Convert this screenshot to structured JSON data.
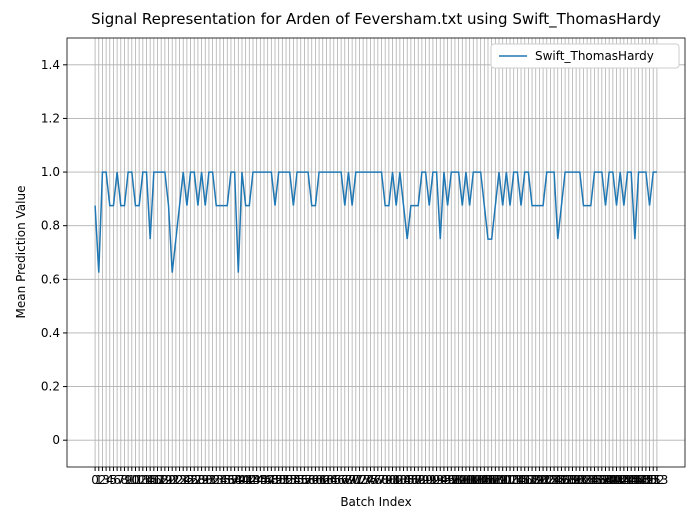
{
  "chart_data": {
    "type": "line",
    "title": "Signal Representation for Arden of Feversham.txt using Swift_ThomasHardy",
    "x_label": "Batch Index",
    "y_label": "Mean Prediction Value",
    "x": [
      0,
      1,
      2,
      3,
      4,
      5,
      6,
      7,
      8,
      9,
      10,
      11,
      12,
      13,
      14,
      15,
      16,
      17,
      18,
      19,
      20,
      21,
      22,
      23,
      24,
      25,
      26,
      27,
      28,
      29,
      30,
      31,
      32,
      33,
      34,
      35,
      36,
      37,
      38,
      39,
      40,
      41,
      42,
      43,
      44,
      45,
      46,
      47,
      48,
      49,
      50,
      51,
      52,
      53,
      54,
      55,
      56,
      57,
      58,
      59,
      60,
      61,
      62,
      63,
      64,
      65,
      66,
      67,
      68,
      69,
      70,
      71,
      72,
      73,
      74,
      75,
      76,
      77,
      78,
      79,
      80,
      81,
      82,
      83,
      84,
      85,
      86,
      87,
      88,
      89,
      90,
      91,
      92,
      93,
      94,
      95,
      96,
      97,
      98,
      99,
      100,
      101,
      102,
      103,
      104,
      105,
      106,
      107,
      108,
      109,
      110,
      111,
      112,
      113,
      114,
      115,
      116,
      117,
      118,
      119,
      120,
      121,
      122,
      123,
      124,
      125,
      126,
      127,
      128,
      129,
      130,
      131,
      132,
      133,
      134,
      135,
      136,
      137,
      138,
      139,
      140,
      141,
      142,
      143,
      144,
      145,
      146,
      147,
      148,
      149,
      150,
      151,
      152,
      153
    ],
    "series": [
      {
        "name": "Swift_ThomasHardy",
        "color": "#1f77b4",
        "values": [
          0.875,
          0.625,
          1,
          1,
          0.875,
          0.875,
          1,
          0.875,
          0.875,
          1,
          1,
          0.875,
          0.875,
          1,
          1,
          0.75,
          1,
          1,
          1,
          1,
          0.875,
          0.625,
          0.75,
          0.875,
          1,
          0.875,
          1,
          1,
          0.875,
          1,
          0.875,
          1,
          1,
          0.875,
          0.875,
          0.875,
          0.875,
          1,
          1,
          0.625,
          1,
          0.875,
          0.875,
          1,
          1,
          1,
          1,
          1,
          1,
          0.875,
          1,
          1,
          1,
          1,
          0.875,
          1,
          1,
          1,
          1,
          0.875,
          0.875,
          1,
          1,
          1,
          1,
          1,
          1,
          1,
          0.875,
          1,
          0.875,
          1,
          1,
          1,
          1,
          1,
          1,
          1,
          1,
          0.875,
          0.875,
          1,
          0.875,
          1,
          0.875,
          0.75,
          0.875,
          0.875,
          0.875,
          1,
          1,
          0.875,
          1,
          1,
          0.75,
          1,
          0.875,
          1,
          1,
          1,
          0.875,
          1,
          0.875,
          1,
          1,
          1,
          0.875,
          0.75,
          0.75,
          0.875,
          1,
          0.875,
          1,
          0.875,
          1,
          1,
          0.875,
          1,
          1,
          0.875,
          0.875,
          0.875,
          0.875,
          1,
          1,
          1,
          0.75,
          0.875,
          1,
          1,
          1,
          1,
          1,
          0.875,
          0.875,
          0.875,
          1,
          1,
          1,
          0.875,
          1,
          1,
          0.875,
          1,
          0.875,
          1,
          1,
          0.75,
          1,
          1,
          1,
          0.875,
          1,
          1
        ]
      }
    ],
    "xlim": [
      -7.65,
      160.65
    ],
    "ylim": [
      -0.1,
      1.5
    ],
    "xticks": [
      0,
      1,
      2,
      3,
      4,
      5,
      6,
      7,
      8,
      9,
      10,
      11,
      12,
      13,
      14,
      15,
      16,
      17,
      18,
      19,
      20,
      21,
      22,
      23,
      24,
      25,
      26,
      27,
      28,
      29,
      30,
      31,
      32,
      33,
      34,
      35,
      36,
      37,
      38,
      39,
      40,
      41,
      42,
      43,
      44,
      45,
      46,
      47,
      48,
      49,
      50,
      51,
      52,
      53,
      54,
      55,
      56,
      57,
      58,
      59,
      60,
      61,
      62,
      63,
      64,
      65,
      66,
      67,
      68,
      69,
      70,
      71,
      72,
      73,
      74,
      75,
      76,
      77,
      78,
      79,
      80,
      81,
      82,
      83,
      84,
      85,
      86,
      87,
      88,
      89,
      90,
      91,
      92,
      93,
      94,
      95,
      96,
      97,
      98,
      99,
      100,
      101,
      102,
      103,
      104,
      105,
      106,
      107,
      108,
      109,
      110,
      111,
      112,
      113,
      114,
      115,
      116,
      117,
      118,
      119,
      120,
      121,
      122,
      123,
      124,
      125,
      126,
      127,
      128,
      129,
      130,
      131,
      132,
      133,
      134,
      135,
      136,
      137,
      138,
      139,
      140,
      141,
      142,
      143,
      144,
      145,
      146,
      147,
      148,
      149,
      150,
      151,
      152,
      153
    ],
    "yticks": [
      0,
      {
        "value": 0.2,
        "label": "0.2"
      },
      {
        "value": 0.4,
        "label": "0.4"
      },
      {
        "value": 0.6,
        "label": "0.6"
      },
      {
        "value": 0.8,
        "label": "0.8"
      },
      {
        "value": 1,
        "label": "1.0"
      },
      {
        "value": 1.2,
        "label": "1.2"
      },
      {
        "value": 1.4,
        "label": "1.4"
      }
    ],
    "grid": true,
    "legend": "upper right"
  }
}
